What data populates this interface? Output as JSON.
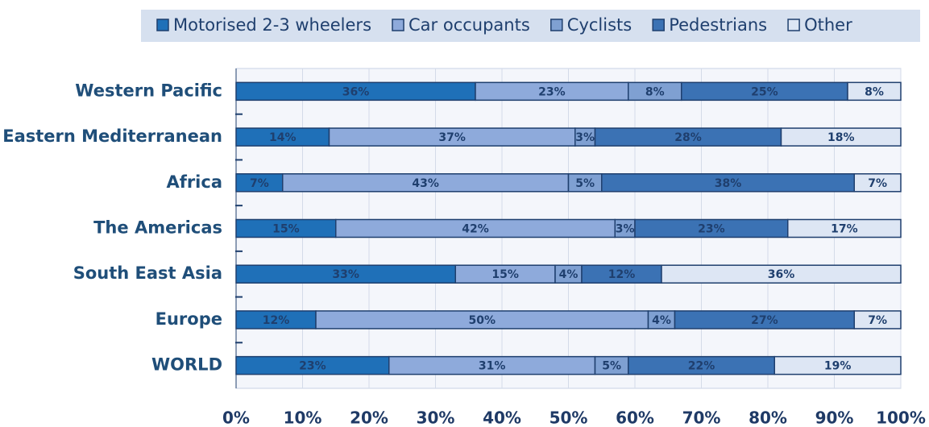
{
  "chart_data": {
    "type": "stacked-bar-horizontal",
    "categories": [
      "Western Pacific",
      "Eastern Mediterranean",
      "Africa",
      "The Americas",
      "South East Asia",
      "Europe",
      "WORLD"
    ],
    "series": [
      {
        "name": "Motorised 2-3 wheelers",
        "color": "#1f70b8",
        "values": [
          36,
          14,
          7,
          15,
          33,
          12,
          23
        ],
        "value_labels": [
          "36%",
          "14%",
          "7%",
          "15%",
          "33%",
          "12%",
          "23%"
        ]
      },
      {
        "name": "Car occupants",
        "color": "#8eaadb",
        "values": [
          23,
          37,
          43,
          42,
          15,
          50,
          31
        ],
        "value_labels": [
          "23%",
          "37%",
          "43%",
          "42%",
          "15%",
          "50%",
          "31%"
        ]
      },
      {
        "name": "Cyclists",
        "color": "#7fa0d2",
        "values": [
          8,
          3,
          5,
          3,
          4,
          4,
          5
        ],
        "value_labels": [
          "8%",
          "3%",
          "5%",
          "3%",
          "4%",
          "4%",
          "5%"
        ]
      },
      {
        "name": "Pedestrians",
        "color": "#3b72b4",
        "values": [
          25,
          28,
          38,
          23,
          12,
          27,
          22
        ],
        "value_labels": [
          "25%",
          "28%",
          "38%",
          "23%",
          "12%",
          "27%",
          "22%"
        ]
      },
      {
        "name": "Other",
        "color": "#dde6f4",
        "values": [
          8,
          18,
          7,
          17,
          36,
          7,
          19
        ],
        "value_labels": [
          "8%",
          "18%",
          "7%",
          "17%",
          "36%",
          "7%",
          "19%"
        ]
      }
    ],
    "xlim": [
      0,
      100
    ],
    "xticks": [
      {
        "value": 0,
        "label": "0%"
      },
      {
        "value": 10,
        "label": "10%"
      },
      {
        "value": 20,
        "label": "20%"
      },
      {
        "value": 30,
        "label": "30%"
      },
      {
        "value": 40,
        "label": "40%"
      },
      {
        "value": 50,
        "label": "50%"
      },
      {
        "value": 60,
        "label": "60%"
      },
      {
        "value": 70,
        "label": "70%"
      },
      {
        "value": 80,
        "label": "80%"
      },
      {
        "value": 90,
        "label": "90%"
      },
      {
        "value": 100,
        "label": "100%"
      }
    ],
    "grid": true,
    "legend": "top"
  }
}
